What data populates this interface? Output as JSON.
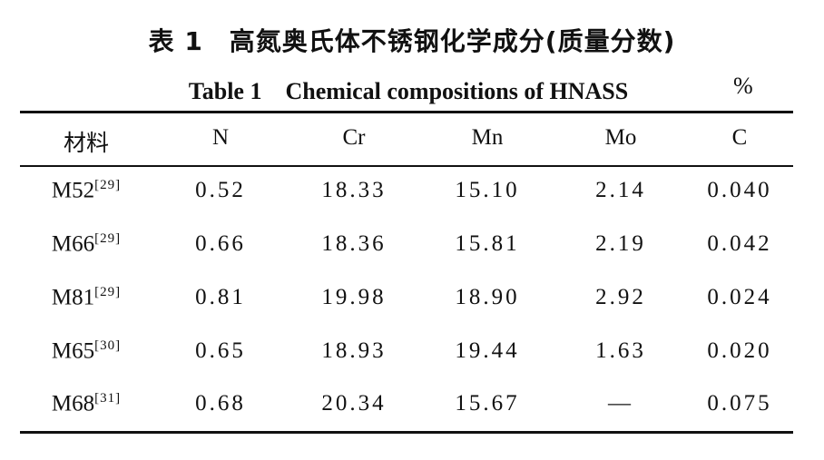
{
  "caption": {
    "title_cn": "表 1　高氮奥氏体不锈钢化学成分(质量分数)",
    "title_en": "Table 1　Chemical compositions of HNASS",
    "unit": "%"
  },
  "table": {
    "header": [
      "材料",
      "N",
      "Cr",
      "Mn",
      "Mo",
      "C"
    ],
    "rows": [
      [
        {
          "name": "M52",
          "ref": "[29]"
        },
        "0.52",
        "18.33",
        "15.10",
        "2.14",
        "0.040"
      ],
      [
        {
          "name": "M66",
          "ref": "[29]"
        },
        "0.66",
        "18.36",
        "15.81",
        "2.19",
        "0.042"
      ],
      [
        {
          "name": "M81",
          "ref": "[29]"
        },
        "0.81",
        "19.98",
        "18.90",
        "2.92",
        "0.024"
      ],
      [
        {
          "name": "M65",
          "ref": "[30]"
        },
        "0.65",
        "18.93",
        "19.44",
        "1.63",
        "0.020"
      ],
      [
        {
          "name": "M68",
          "ref": "[31]"
        },
        "0.68",
        "20.34",
        "15.67",
        "—",
        "0.075"
      ]
    ]
  }
}
